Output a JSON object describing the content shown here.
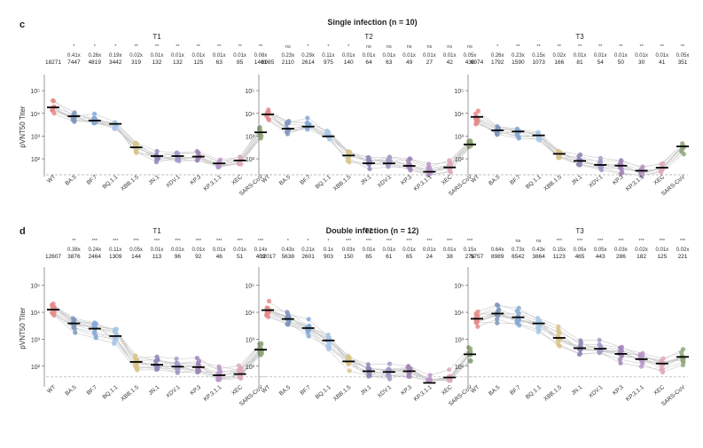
{
  "sections": [
    {
      "letter": "c",
      "title": "Single infection (n = 10)",
      "ylabel": "pVNT50 Titer",
      "y_ticks": [
        {
          "exp": 2,
          "label": "10²"
        },
        {
          "exp": 3,
          "label": "10³"
        },
        {
          "exp": 4,
          "label": "10⁴"
        },
        {
          "exp": 5,
          "label": "10⁵"
        }
      ],
      "ylim_log10": [
        1.3,
        5.55
      ],
      "detection_limit": 20,
      "categories": [
        "WT",
        "BA.5",
        "BF.7",
        "BQ.1.1",
        "XBB.1.5",
        "JN.1",
        "XDV.1",
        "KP.3",
        "KP.3.1.1",
        "XEC",
        "SARS-CoV"
      ],
      "panels": [
        {
          "name": "T1",
          "sig": [
            "",
            "*",
            "*",
            "*",
            "**",
            "**",
            "**",
            "**",
            "**",
            "**",
            "**"
          ],
          "fold": [
            "",
            "0.41x",
            "0.26x",
            "0.19x",
            "0.02x",
            "0.01x",
            "0.01x",
            "0.01x",
            "0.01x",
            "0.01x",
            "0.08x"
          ],
          "gmt": [
            18271,
            7447,
            4819,
            3442,
            319,
            132,
            132,
            125,
            63,
            85,
            1461
          ]
        },
        {
          "name": "T2",
          "sig": [
            "",
            "ns",
            "*",
            "*",
            "*",
            "ns",
            "ns",
            "ns",
            "ns",
            "ns",
            "ns"
          ],
          "fold": [
            "",
            "0.23x",
            "0.29x",
            "0.11x",
            "0.01x",
            "0.01x",
            "0.01x",
            "0.01x",
            "0.01x",
            "0.01x",
            "0.05x"
          ],
          "gmt": [
            8985,
            2110,
            2614,
            975,
            140,
            64,
            63,
            49,
            27,
            42,
            430
          ]
        },
        {
          "name": "T3",
          "sig": [
            "",
            "*",
            "**",
            "**",
            "**",
            "**",
            "**",
            "**",
            "**",
            "**",
            "**"
          ],
          "fold": [
            "",
            "0.26x",
            "0.23x",
            "0.15x",
            "0.02x",
            "0.01x",
            "0.01x",
            "0.01x",
            "0.01x",
            "0.01x",
            "0.05x"
          ],
          "gmt": [
            6974,
            1792,
            1590,
            1073,
            166,
            81,
            54,
            50,
            30,
            41,
            351
          ]
        }
      ]
    },
    {
      "letter": "d",
      "title": "Double infection (n = 12)",
      "ylabel": "pVNT50 Titer",
      "y_ticks": [
        {
          "exp": 2,
          "label": "10²"
        },
        {
          "exp": 3,
          "label": "10³"
        },
        {
          "exp": 4,
          "label": "10⁴"
        },
        {
          "exp": 5,
          "label": "10⁵"
        }
      ],
      "ylim_log10": [
        1.3,
        5.55
      ],
      "detection_limit": 40,
      "categories": [
        "WT",
        "BA.5",
        "BF.7",
        "BQ.1.1",
        "XBB.1.5",
        "JN.1",
        "XDV.1",
        "KP.3",
        "KP.3.1.1",
        "XEC",
        "SARS-CoV"
      ],
      "panels": [
        {
          "name": "T1",
          "sig": [
            "",
            "**",
            "***",
            "***",
            "***",
            "***",
            "***",
            "***",
            "***",
            "***",
            "***"
          ],
          "fold": [
            "",
            "0.38x",
            "0.24x",
            "0.11x",
            "0.05x",
            "0.01x",
            "0.01x",
            "0.01x",
            "0.01x",
            "0.01x",
            "0.14x"
          ],
          "gmt": [
            12607,
            3876,
            2464,
            1309,
            144,
            113,
            96,
            92,
            46,
            51,
            409
          ]
        },
        {
          "name": "T2",
          "sig": [
            "",
            "*",
            "*",
            "*",
            "***",
            "***",
            "***",
            "***",
            "***",
            "***",
            "***"
          ],
          "fold": [
            "",
            "0.43x",
            "0.21x",
            "0.1x",
            "0.03x",
            "0.01x",
            "0.01x",
            "0.01x",
            "0.01x",
            "0.01x",
            "0.15x"
          ],
          "gmt": [
            12017,
            5638,
            2601,
            903,
            150,
            65,
            61,
            65,
            24,
            38,
            276
          ]
        },
        {
          "name": "T3",
          "sig": [
            "",
            "",
            "ns",
            "ns",
            "***",
            "***",
            "***",
            "***",
            "***",
            "***",
            "***"
          ],
          "fold": [
            "",
            "0.64x",
            "0.73x",
            "0.43x",
            "0.15x",
            "0.05x",
            "0.05x",
            "0.03x",
            "0.02x",
            "0.01x",
            "0.02x"
          ],
          "gmt": [
            5757,
            8989,
            6542,
            3864,
            1123,
            465,
            443,
            286,
            182,
            125,
            221
          ]
        }
      ]
    }
  ],
  "colors": [
    "#e58a8a",
    "#7f96bd",
    "#86a9d6",
    "#a7c7e6",
    "#d8c48a",
    "#9088b6",
    "#a39cc8",
    "#a186b7",
    "#b998c8",
    "#dea8be",
    "#8fa87a"
  ],
  "chart_data": [
    {
      "type": "scatter",
      "title": "Single infection (n = 10)",
      "ylabel": "pVNT50 Titer",
      "yscale": "log",
      "categories": [
        "WT",
        "BA.5",
        "BF.7",
        "BQ.1.1",
        "XBB.1.5",
        "JN.1",
        "XDV.1",
        "KP.3",
        "KP.3.1.1",
        "XEC",
        "SARS-CoV"
      ],
      "series": [
        {
          "name": "T1",
          "values": [
            18271,
            7447,
            4819,
            3442,
            319,
            132,
            132,
            125,
            63,
            85,
            1461
          ]
        },
        {
          "name": "T2",
          "values": [
            8985,
            2110,
            2614,
            975,
            140,
            64,
            63,
            49,
            27,
            42,
            430
          ]
        },
        {
          "name": "T3",
          "values": [
            6974,
            1792,
            1590,
            1073,
            166,
            81,
            54,
            50,
            30,
            41,
            351
          ]
        }
      ]
    },
    {
      "type": "scatter",
      "title": "Double infection (n = 12)",
      "ylabel": "pVNT50 Titer",
      "yscale": "log",
      "categories": [
        "WT",
        "BA.5",
        "BF.7",
        "BQ.1.1",
        "XBB.1.5",
        "JN.1",
        "XDV.1",
        "KP.3",
        "KP.3.1.1",
        "XEC",
        "SARS-CoV"
      ],
      "series": [
        {
          "name": "T1",
          "values": [
            12607,
            3876,
            2464,
            1309,
            144,
            113,
            96,
            92,
            46,
            51,
            409
          ]
        },
        {
          "name": "T2",
          "values": [
            12017,
            5638,
            2601,
            903,
            150,
            65,
            61,
            65,
            24,
            38,
            276
          ]
        },
        {
          "name": "T3",
          "values": [
            5757,
            8989,
            6542,
            3864,
            1123,
            465,
            443,
            286,
            182,
            125,
            221
          ]
        }
      ]
    }
  ]
}
